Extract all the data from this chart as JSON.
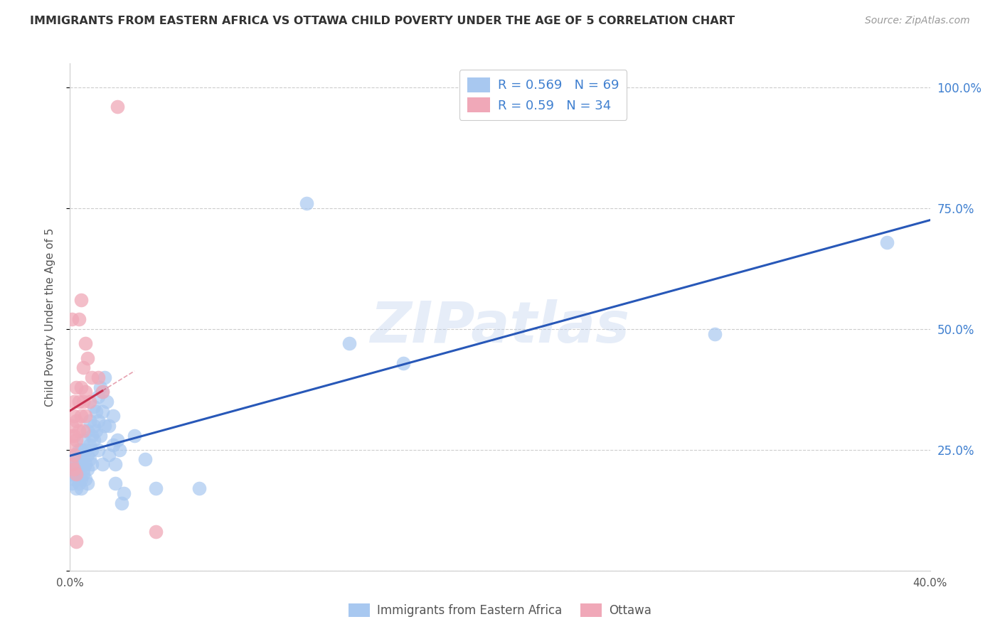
{
  "title": "IMMIGRANTS FROM EASTERN AFRICA VS OTTAWA CHILD POVERTY UNDER THE AGE OF 5 CORRELATION CHART",
  "source": "Source: ZipAtlas.com",
  "ylabel": "Child Poverty Under the Age of 5",
  "R1": 0.569,
  "N1": 69,
  "R2": 0.59,
  "N2": 34,
  "legend_label1": "Immigrants from Eastern Africa",
  "legend_label2": "Ottawa",
  "blue_color": "#a8c8f0",
  "pink_color": "#f0a8b8",
  "blue_line_color": "#2858b8",
  "pink_line_color": "#c83050",
  "right_tick_color": "#4080d0",
  "watermark": "ZIPatlas",
  "xlim": [
    0.0,
    0.4
  ],
  "ylim": [
    0.0,
    1.05
  ],
  "yticks": [
    0.0,
    0.25,
    0.5,
    0.75,
    1.0
  ],
  "ytick_labels": [
    "",
    "25.0%",
    "50.0%",
    "75.0%",
    "100.0%"
  ],
  "xticks": [
    0.0,
    0.08,
    0.16,
    0.24,
    0.32,
    0.4
  ],
  "xtick_labels": [
    "0.0%",
    "",
    "",
    "",
    "",
    "40.0%"
  ],
  "blue_x": [
    0.001,
    0.001,
    0.002,
    0.002,
    0.002,
    0.003,
    0.003,
    0.003,
    0.003,
    0.004,
    0.004,
    0.004,
    0.004,
    0.005,
    0.005,
    0.005,
    0.005,
    0.006,
    0.006,
    0.006,
    0.006,
    0.007,
    0.007,
    0.007,
    0.008,
    0.008,
    0.008,
    0.008,
    0.009,
    0.009,
    0.009,
    0.01,
    0.01,
    0.01,
    0.011,
    0.011,
    0.011,
    0.012,
    0.012,
    0.013,
    0.013,
    0.013,
    0.014,
    0.014,
    0.015,
    0.015,
    0.015,
    0.016,
    0.016,
    0.017,
    0.018,
    0.018,
    0.02,
    0.02,
    0.021,
    0.021,
    0.022,
    0.023,
    0.024,
    0.025,
    0.03,
    0.035,
    0.04,
    0.06,
    0.11,
    0.13,
    0.155,
    0.3,
    0.38
  ],
  "blue_y": [
    0.18,
    0.2,
    0.19,
    0.21,
    0.23,
    0.2,
    0.22,
    0.24,
    0.17,
    0.2,
    0.22,
    0.18,
    0.25,
    0.19,
    0.22,
    0.25,
    0.17,
    0.21,
    0.24,
    0.27,
    0.2,
    0.22,
    0.25,
    0.19,
    0.24,
    0.29,
    0.21,
    0.18,
    0.26,
    0.23,
    0.31,
    0.28,
    0.25,
    0.22,
    0.3,
    0.27,
    0.34,
    0.33,
    0.29,
    0.36,
    0.31,
    0.25,
    0.38,
    0.28,
    0.37,
    0.33,
    0.22,
    0.4,
    0.3,
    0.35,
    0.3,
    0.24,
    0.32,
    0.26,
    0.22,
    0.18,
    0.27,
    0.25,
    0.14,
    0.16,
    0.28,
    0.23,
    0.17,
    0.17,
    0.76,
    0.47,
    0.43,
    0.49,
    0.68
  ],
  "pink_x": [
    0.001,
    0.001,
    0.001,
    0.001,
    0.001,
    0.002,
    0.002,
    0.002,
    0.002,
    0.002,
    0.003,
    0.003,
    0.003,
    0.003,
    0.003,
    0.004,
    0.004,
    0.004,
    0.005,
    0.005,
    0.005,
    0.006,
    0.006,
    0.006,
    0.007,
    0.007,
    0.007,
    0.008,
    0.009,
    0.01,
    0.013,
    0.015,
    0.022,
    0.04
  ],
  "pink_y": [
    0.26,
    0.28,
    0.22,
    0.3,
    0.52,
    0.32,
    0.28,
    0.24,
    0.35,
    0.21,
    0.38,
    0.31,
    0.27,
    0.2,
    0.06,
    0.52,
    0.35,
    0.29,
    0.56,
    0.38,
    0.32,
    0.42,
    0.35,
    0.29,
    0.47,
    0.37,
    0.32,
    0.44,
    0.35,
    0.4,
    0.4,
    0.37,
    0.96,
    0.08
  ],
  "background_color": "#ffffff",
  "grid_color": "#cccccc",
  "title_color": "#333333",
  "source_color": "#999999"
}
